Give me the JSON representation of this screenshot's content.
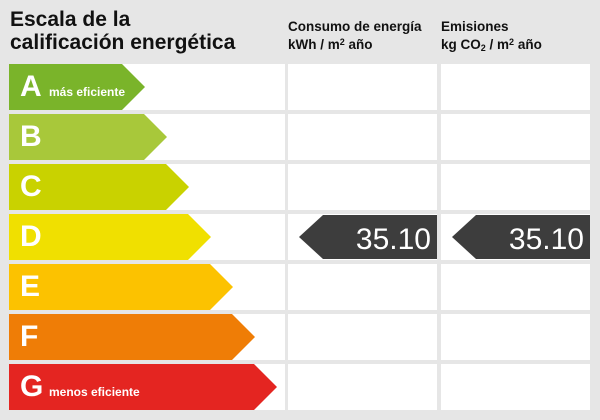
{
  "title_line1": "Escala de la",
  "title_line2": "calificación energética",
  "consumo": {
    "line1": "Consumo de energía",
    "unit_pre": "kWh / m",
    "unit_sup": "2",
    "unit_post": " año"
  },
  "emisiones": {
    "line1": "Emisiones",
    "unit_pre": "kg CO",
    "unit_sub": "2",
    "unit_mid": " / m",
    "unit_sup": "2",
    "unit_post": " año"
  },
  "ratings": [
    {
      "letter": "A",
      "note": "más eficiente",
      "color": "#7ab42a"
    },
    {
      "letter": "B",
      "note": "",
      "color": "#a8c83a"
    },
    {
      "letter": "C",
      "note": "",
      "color": "#c9d200"
    },
    {
      "letter": "D",
      "note": "",
      "color": "#f0e000"
    },
    {
      "letter": "E",
      "note": "",
      "color": "#fcc200"
    },
    {
      "letter": "F",
      "note": "",
      "color": "#ef7d06"
    },
    {
      "letter": "G",
      "note": "menos eficiente",
      "color": "#e42521"
    }
  ],
  "current": {
    "rating": "D",
    "consumo_value": "35.10",
    "emisiones_value": "35.10",
    "marker_color": "#3d3d3d"
  }
}
